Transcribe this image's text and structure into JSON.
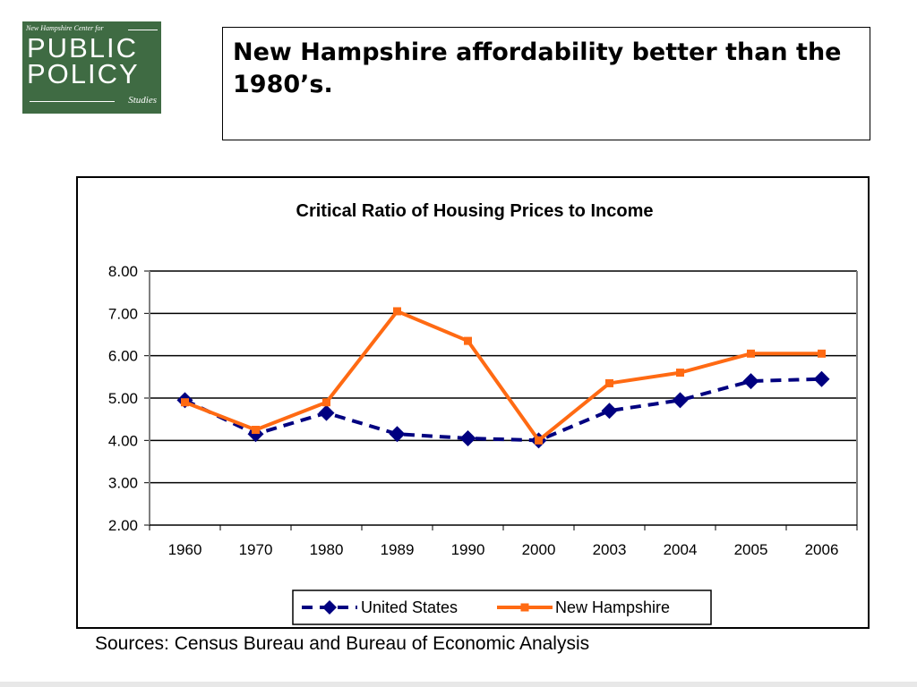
{
  "logo": {
    "top_text": "New Hampshire Center for",
    "line1": "PUBLIC",
    "line2": "POLICY",
    "line3": "Studies"
  },
  "slide": {
    "title": "New Hampshire affordability better than the 1980’s.",
    "source": "Sources: Census Bureau and Bureau of Economic Analysis"
  },
  "colors": {
    "us": "#000080",
    "nh": "#ff6a13",
    "logo_bg": "#3f6b43"
  },
  "chart_data": {
    "type": "line",
    "title": "Critical Ratio of Housing Prices to Income",
    "categories": [
      "1960",
      "1970",
      "1980",
      "1989",
      "1990",
      "2000",
      "2003",
      "2004",
      "2005",
      "2006"
    ],
    "yticks": [
      "8.00",
      "7.00",
      "6.00",
      "5.00",
      "4.00",
      "3.00",
      "2.00"
    ],
    "ylim": [
      2,
      8
    ],
    "grid": true,
    "legend_position": "bottom",
    "series": [
      {
        "name": "United States",
        "marker": "diamond",
        "line": "dashed",
        "color": "#000080",
        "values": [
          4.95,
          4.15,
          4.65,
          4.15,
          4.05,
          4.0,
          4.7,
          4.95,
          5.4,
          5.45
        ]
      },
      {
        "name": "New Hampshire",
        "marker": "square",
        "line": "solid",
        "color": "#ff6a13",
        "values": [
          4.9,
          4.25,
          4.9,
          7.05,
          6.35,
          4.0,
          5.35,
          5.6,
          6.05,
          6.05
        ]
      }
    ]
  }
}
